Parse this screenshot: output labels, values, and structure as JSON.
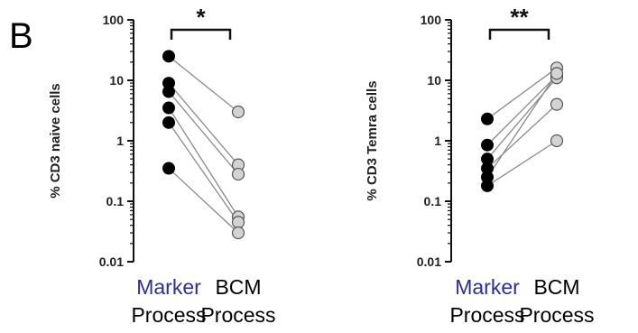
{
  "panel_label": "B",
  "colors": {
    "marker_point": "#000000",
    "bcm_point": "#d3d3d3",
    "connector": "#8a8a8a",
    "marker_label": "#2b2f8f",
    "process_label": "#000000",
    "axis": "#111111"
  },
  "chart_data": [
    {
      "type": "scatter",
      "subtype": "paired-dot",
      "ylabel": "% CD3 naive cells",
      "yscale": "log",
      "ylim": [
        0.01,
        100
      ],
      "yticks": [
        "0.01",
        "0.1",
        "1",
        "10",
        "100"
      ],
      "categories": [
        {
          "line1": "Marker",
          "line2": "Process"
        },
        {
          "line1": "BCM",
          "line2": "Process"
        }
      ],
      "significance": "*",
      "pairs": [
        {
          "marker": 25,
          "bcm": 3
        },
        {
          "marker": 9,
          "bcm": 0.4
        },
        {
          "marker": 6.5,
          "bcm": 0.28
        },
        {
          "marker": 3.5,
          "bcm": 0.055
        },
        {
          "marker": 2,
          "bcm": 0.045
        },
        {
          "marker": 0.35,
          "bcm": 0.03
        }
      ]
    },
    {
      "type": "scatter",
      "subtype": "paired-dot",
      "ylabel": "% CD3 Temra cells",
      "yscale": "log",
      "ylim": [
        0.01,
        100
      ],
      "yticks": [
        "0.01",
        "0.1",
        "1",
        "10",
        "100"
      ],
      "categories": [
        {
          "line1": "Marker",
          "line2": "Process"
        },
        {
          "line1": "BCM",
          "line2": "Process"
        }
      ],
      "significance": "**",
      "pairs": [
        {
          "marker": 2.3,
          "bcm": 16
        },
        {
          "marker": 0.85,
          "bcm": 12
        },
        {
          "marker": 0.5,
          "bcm": 11
        },
        {
          "marker": 0.35,
          "bcm": 4
        },
        {
          "marker": 0.25,
          "bcm": 13
        },
        {
          "marker": 0.18,
          "bcm": 1
        }
      ]
    }
  ]
}
